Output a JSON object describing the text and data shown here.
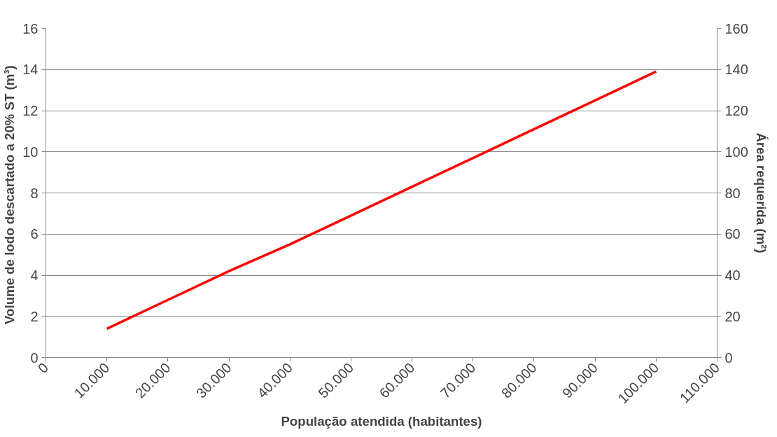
{
  "chart_data": {
    "type": "line",
    "xlabel": "População atendida (habitantes)",
    "ylabel": "Volume  de lodo descartado a 20% ST (m³)",
    "y2label": "Área requerida (m²)",
    "x": [
      10000,
      20000,
      30000,
      40000,
      50000,
      60000,
      70000,
      80000,
      90000,
      100000
    ],
    "series": [
      {
        "color": "#ff0000",
        "values": [
          1.4,
          2.8,
          4.2,
          5.5,
          6.9,
          8.3,
          9.7,
          11.1,
          12.5,
          13.9
        ]
      }
    ],
    "xlim": [
      0,
      110000
    ],
    "xticks": [
      {
        "value": 0,
        "label": "0"
      },
      {
        "value": 10000,
        "label": "10.000"
      },
      {
        "value": 20000,
        "label": "20.000"
      },
      {
        "value": 30000,
        "label": "30.000"
      },
      {
        "value": 40000,
        "label": "40.000"
      },
      {
        "value": 50000,
        "label": "50.000"
      },
      {
        "value": 60000,
        "label": "60.000"
      },
      {
        "value": 70000,
        "label": "70.000"
      },
      {
        "value": 80000,
        "label": "80.000"
      },
      {
        "value": 90000,
        "label": "90.000"
      },
      {
        "value": 100000,
        "label": "100.000"
      },
      {
        "value": 110000,
        "label": "110.000"
      }
    ],
    "ylim": [
      0,
      16
    ],
    "yticks": [
      0,
      2,
      4,
      6,
      8,
      10,
      12,
      14,
      16
    ],
    "y2lim": [
      0,
      160
    ],
    "y2ticks": [
      0,
      20,
      40,
      60,
      80,
      100,
      120,
      140,
      160
    ],
    "grid": "y",
    "marker": "none",
    "line_style": "solid"
  }
}
